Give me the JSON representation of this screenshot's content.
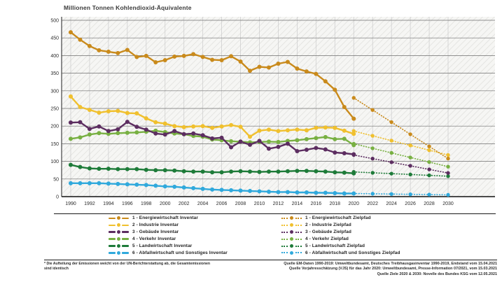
{
  "title": "Millionen Tonnen Kohlendioxid-Äquivalente",
  "footnote": "* Die Aufteilung der Emissionen weicht von der UN-Berichterstattung ab, die Gesamtemissionen sind identisch",
  "sources": [
    "Quelle EM-Daten 1990-2019: Umweltbundesamt, Deutsches Treibhausgasinventar 1990-2019, Endstand vom 15.04.2021",
    "Quelle Vorjahresschätzung (VJS) für das Jahr 2020: Umweltbundesamt, Presse-Information 07/2021, vom 15.03.2021",
    "Quelle Ziele 2020 & 2030:  Novelle des Bundes KSG vom 12.05.2021"
  ],
  "chart_data": {
    "type": "line",
    "title": "Millionen Tonnen Kohlendioxid-Äquivalente",
    "xlabel": "",
    "ylabel": "Millionen Tonnen Kohlendioxid-Äquivalente",
    "ylim": [
      0,
      500
    ],
    "ytick_step": 50,
    "x_ticks": [
      1990,
      1992,
      1994,
      1996,
      1998,
      2000,
      2002,
      2004,
      2006,
      2008,
      2010,
      2012,
      2014,
      2016,
      2018,
      2020,
      2022,
      2024,
      2026,
      2028,
      2030
    ],
    "grid": true,
    "legend_position": "bottom",
    "series": [
      {
        "id": "energiewirtschaft-inventar",
        "name": "1 - Energiewirtschaft Inventar",
        "color": "#C98A1B",
        "style": "solid",
        "x_start": 1990,
        "values": [
          466,
          445,
          427,
          415,
          411,
          407,
          416,
          396,
          399,
          381,
          387,
          397,
          399,
          404,
          396,
          388,
          387,
          398,
          383,
          357,
          368,
          366,
          377,
          382,
          363,
          355,
          348,
          327,
          303,
          254,
          221
        ]
      },
      {
        "id": "industrie-inventar",
        "name": "2 - Industrie Inventar",
        "color": "#F0C02E",
        "style": "solid",
        "x_start": 1990,
        "values": [
          284,
          254,
          246,
          238,
          242,
          243,
          237,
          236,
          222,
          211,
          207,
          200,
          197,
          199,
          200,
          195,
          199,
          203,
          198,
          170,
          187,
          190,
          186,
          188,
          190,
          188,
          195,
          196,
          195,
          187,
          178
        ]
      },
      {
        "id": "gebaeude-inventar",
        "name": "3 - Gebäude Inventar",
        "color": "#5C2D60",
        "style": "solid",
        "x_start": 1990,
        "values": [
          210,
          211,
          192,
          199,
          186,
          191,
          212,
          198,
          190,
          179,
          176,
          186,
          177,
          179,
          174,
          165,
          167,
          140,
          156,
          147,
          158,
          136,
          141,
          150,
          129,
          133,
          138,
          134,
          125,
          123,
          120
        ]
      },
      {
        "id": "verkehr-inventar",
        "name": "4 - Verkehr Inventar",
        "color": "#78B042",
        "style": "solid",
        "x_start": 1990,
        "values": [
          164,
          168,
          176,
          180,
          178,
          180,
          181,
          182,
          184,
          187,
          183,
          179,
          177,
          172,
          170,
          162,
          160,
          157,
          156,
          154,
          155,
          156,
          155,
          158,
          160,
          163,
          166,
          169,
          163,
          164,
          146
        ]
      },
      {
        "id": "landwirtschaft-inventar",
        "name": "5 - Landwirtschaft Inventar",
        "color": "#1E7B39",
        "style": "solid",
        "x_start": 1990,
        "values": [
          90,
          84,
          80,
          79,
          79,
          78,
          78,
          78,
          76,
          75,
          75,
          74,
          72,
          71,
          71,
          69,
          69,
          71,
          72,
          71,
          70,
          71,
          71,
          72,
          73,
          73,
          72,
          71,
          69,
          68,
          66
        ]
      },
      {
        "id": "abfallwirtschaft-inventar",
        "name": "6 - Abfallwirtschaft und Sonstiges Inventar",
        "color": "#30A9DC",
        "style": "solid",
        "x_start": 1990,
        "values": [
          38,
          38,
          38,
          38,
          37,
          36,
          35,
          34,
          33,
          31,
          29,
          28,
          26,
          24,
          22,
          20,
          19,
          18,
          17,
          16,
          15,
          14,
          13,
          13,
          12,
          12,
          11,
          11,
          10,
          9,
          9
        ]
      },
      {
        "id": "energiewirtschaft-zielpfad",
        "name": "1 - Energiewirtschaft Zielpfad",
        "color": "#C98A1B",
        "style": "dotted",
        "x_start": 2020,
        "values": [
          280,
          262.8,
          245.6,
          228.4,
          211.2,
          194,
          176.8,
          159.6,
          142.4,
          125.2,
          108
        ]
      },
      {
        "id": "industrie-zielpfad",
        "name": "2 - Industrie Zielpfad",
        "color": "#F0C02E",
        "style": "dotted",
        "x_start": 2020,
        "values": [
          186,
          179.2,
          172.4,
          165.6,
          158.8,
          152,
          145.2,
          138.4,
          131.6,
          124.8,
          118
        ]
      },
      {
        "id": "gebaeude-zielpfad",
        "name": "3 - Gebäude Zielpfad",
        "color": "#5C2D60",
        "style": "dotted",
        "x_start": 2020,
        "values": [
          118,
          112.9,
          107.8,
          102.7,
          97.6,
          92.5,
          87.4,
          82.3,
          77.2,
          72.1,
          67
        ]
      },
      {
        "id": "verkehr-zielpfad",
        "name": "4 - Verkehr Zielpfad",
        "color": "#78B042",
        "style": "dotted",
        "x_start": 2020,
        "values": [
          150,
          143.5,
          137,
          130.5,
          124,
          117.5,
          111,
          104.5,
          98,
          91.5,
          85
        ]
      },
      {
        "id": "landwirtschaft-zielpfad",
        "name": "5 - Landwirtschaft Zielpfad",
        "color": "#1E7B39",
        "style": "dotted",
        "x_start": 2020,
        "values": [
          70,
          68.8,
          67.6,
          66.4,
          65.2,
          64,
          62.8,
          61.6,
          60.4,
          59.2,
          58
        ]
      },
      {
        "id": "abfallwirtschaft-zielpfad",
        "name": "6 - Abfallwirtschaft und Sonstiges Zielpfad",
        "color": "#30A9DC",
        "style": "dotted",
        "x_start": 2020,
        "values": [
          9,
          8.6,
          8.2,
          7.8,
          7.4,
          7,
          6.6,
          6.2,
          5.8,
          5.4,
          5
        ]
      }
    ]
  }
}
